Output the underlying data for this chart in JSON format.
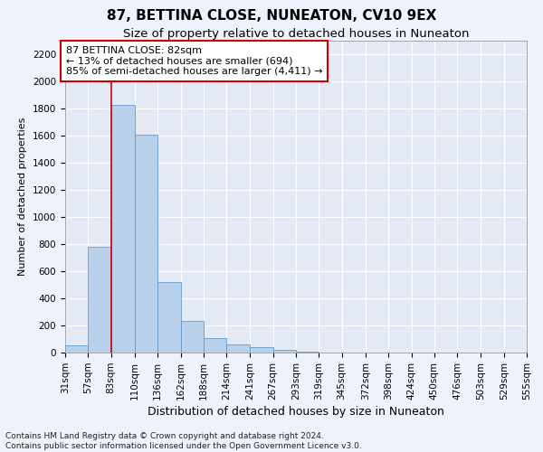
{
  "title": "87, BETTINA CLOSE, NUNEATON, CV10 9EX",
  "subtitle": "Size of property relative to detached houses in Nuneaton",
  "xlabel": "Distribution of detached houses by size in Nuneaton",
  "ylabel": "Number of detached properties",
  "footer_line1": "Contains HM Land Registry data © Crown copyright and database right 2024.",
  "footer_line2": "Contains public sector information licensed under the Open Government Licence v3.0.",
  "bar_edges": [
    31,
    57,
    83,
    110,
    136,
    162,
    188,
    214,
    241,
    267,
    293,
    319,
    345,
    372,
    398,
    424,
    450,
    476,
    503,
    529,
    555
  ],
  "bar_values": [
    52,
    780,
    1830,
    1610,
    520,
    235,
    110,
    58,
    42,
    20,
    10,
    0,
    0,
    0,
    0,
    0,
    0,
    0,
    0,
    0
  ],
  "bar_color": "#b8d0ea",
  "bar_edge_color": "#6699cc",
  "property_line_x": 83,
  "property_line_color": "#cc0000",
  "annotation_text": "87 BETTINA CLOSE: 82sqm\n← 13% of detached houses are smaller (694)\n85% of semi-detached houses are larger (4,411) →",
  "annotation_box_color": "#cc0000",
  "ylim": [
    0,
    2300
  ],
  "yticks": [
    0,
    200,
    400,
    600,
    800,
    1000,
    1200,
    1400,
    1600,
    1800,
    2000,
    2200
  ],
  "title_fontsize": 11,
  "subtitle_fontsize": 9.5,
  "ylabel_fontsize": 8,
  "xlabel_fontsize": 9,
  "tick_fontsize": 7.5,
  "footer_fontsize": 6.5,
  "bg_color": "#eef2fa",
  "plot_bg_color": "#e4eaf5"
}
